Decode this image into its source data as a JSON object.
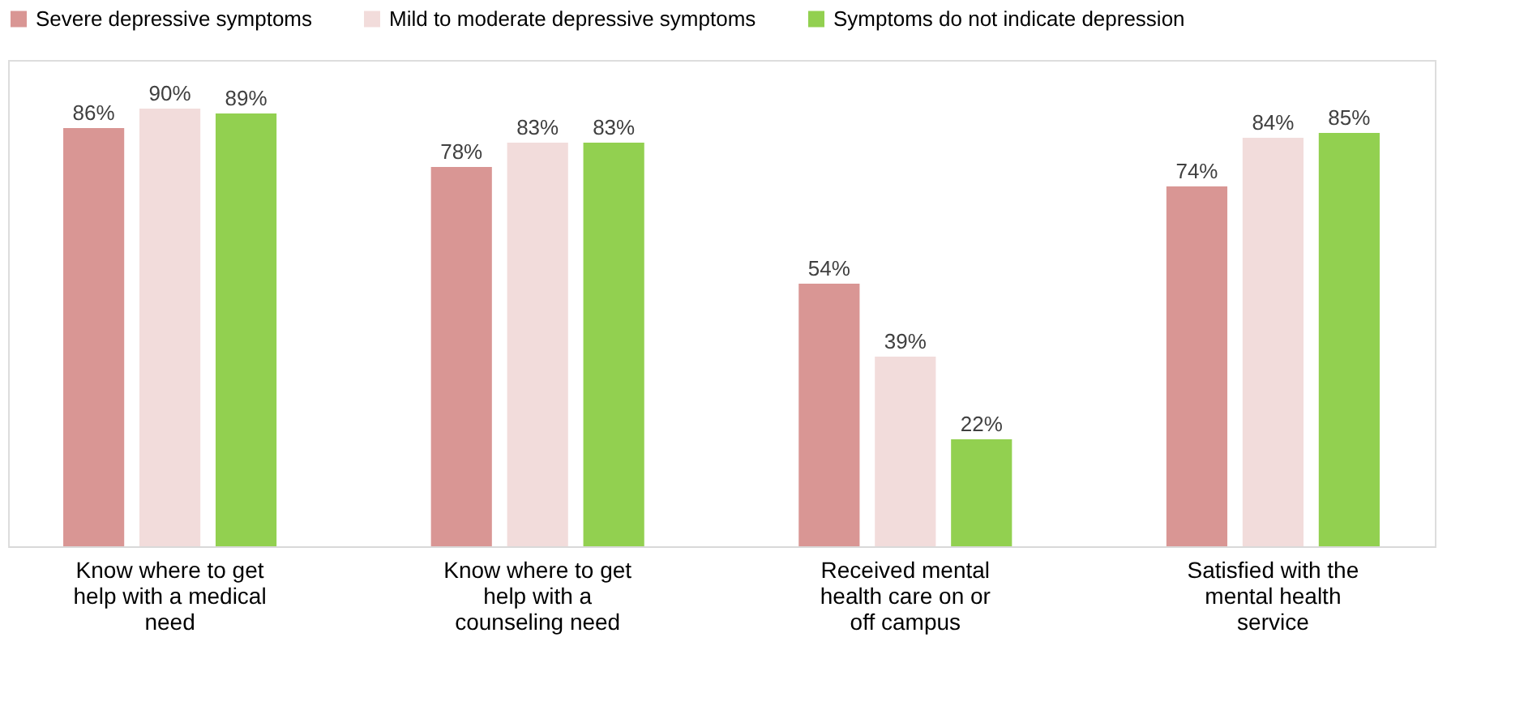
{
  "chart_data": {
    "type": "bar",
    "categories": [
      "Know where to get help with a medical need",
      "Know where to get help with a counseling need",
      "Received mental health care on or off campus",
      "Satisfied with the mental health service"
    ],
    "series": [
      {
        "name": "Severe depressive symptoms",
        "color": "#d99694",
        "values": [
          86,
          78,
          54,
          74
        ],
        "value_labels": [
          "86%",
          "78%",
          "54%",
          "74%"
        ]
      },
      {
        "name": "Mild to moderate depressive symptoms",
        "color": "#f2dcdb",
        "values": [
          90,
          83,
          39,
          84
        ],
        "value_labels": [
          "90%",
          "83%",
          "39%",
          "84%"
        ]
      },
      {
        "name": "Symptoms do not indicate depression",
        "color": "#92d050",
        "values": [
          89,
          83,
          22,
          85
        ],
        "value_labels": [
          "89%",
          "83%",
          "22%",
          "85%"
        ]
      }
    ],
    "ylim": [
      0,
      100
    ],
    "legend": "top",
    "grid": false,
    "tick_labels": "x"
  }
}
